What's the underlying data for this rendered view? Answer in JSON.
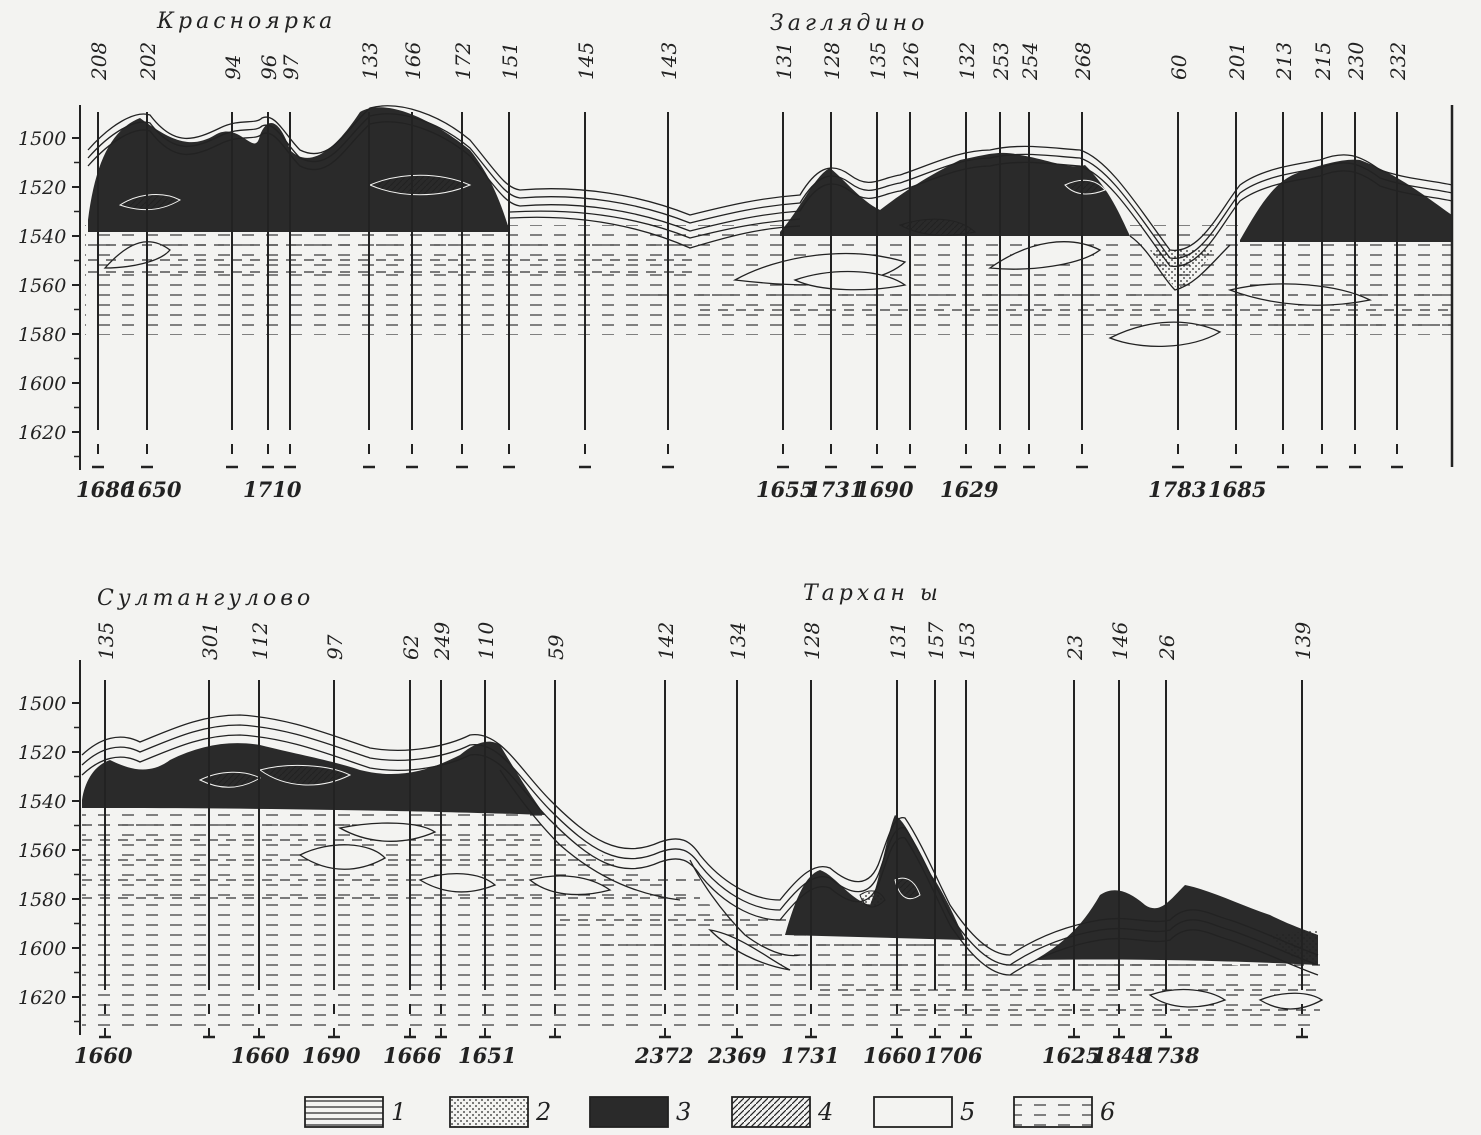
{
  "panels": [
    {
      "name": "upper",
      "localities": [
        "Красноярка",
        "Заглядино"
      ],
      "wells": [
        "208",
        "202",
        "94",
        "96",
        "97",
        "133",
        "166",
        "172",
        "151",
        "145",
        "143",
        "131",
        "128",
        "135",
        "126",
        "132",
        "253",
        "254",
        "268",
        "60",
        "201",
        "213",
        "215",
        "230",
        "232"
      ],
      "bottom_depths": [
        "1686",
        "1650",
        "1710",
        "1655",
        "1731",
        "1690",
        "1629",
        "1783",
        "1685"
      ],
      "depth_ticks": [
        "1500",
        "1520",
        "1540",
        "1560",
        "1580",
        "1600",
        "1620"
      ]
    },
    {
      "name": "lower",
      "localities": [
        "Султангулово",
        "Тархан ы"
      ],
      "wells": [
        "135",
        "301",
        "112",
        "97",
        "62",
        "249",
        "110",
        "59",
        "142",
        "134",
        "128",
        "131",
        "157",
        "153",
        "23",
        "146",
        "26",
        "139"
      ],
      "bottom_depths": [
        "1660",
        "1660",
        "1690",
        "1666",
        "1651",
        "2372",
        "2369",
        "1731",
        "1660",
        "1706",
        "1625",
        "1848",
        "1738"
      ],
      "depth_ticks": [
        "1500",
        "1520",
        "1540",
        "1560",
        "1580",
        "1600",
        "1620"
      ]
    }
  ],
  "legend": [
    {
      "label": "1",
      "pattern": "horizontal-lines"
    },
    {
      "label": "2",
      "pattern": "dots"
    },
    {
      "label": "3",
      "pattern": "solid-dark"
    },
    {
      "label": "4",
      "pattern": "diagonal-hatch"
    },
    {
      "label": "5",
      "pattern": "blank"
    },
    {
      "label": "6",
      "pattern": "dashed-lines"
    }
  ],
  "colors": {
    "ink": "#222222",
    "paper": "#f3f3f1",
    "dark_fill": "#2a2a2a"
  }
}
